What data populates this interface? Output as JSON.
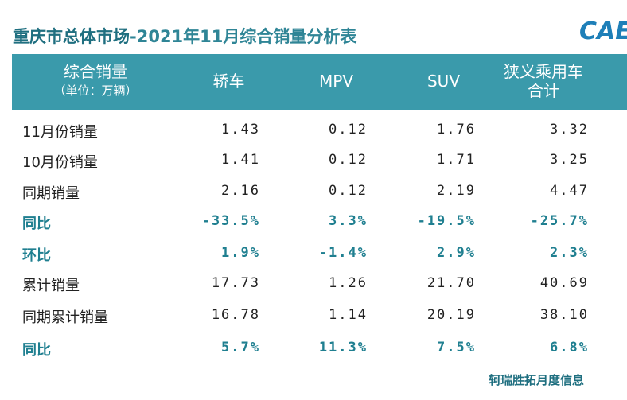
{
  "header": {
    "title_main": "重庆市总体市场",
    "title_sub": "-2021年11月综合销量分析表",
    "logo": "CAE"
  },
  "table": {
    "columns": [
      [
        "综合销量",
        "（单位：万辆）"
      ],
      [
        "轿车"
      ],
      [
        "MPV"
      ],
      [
        "SUV"
      ],
      [
        "狭义乘用车",
        "合计"
      ]
    ],
    "rows": [
      [
        "11月份销量",
        "1.43",
        "0.12",
        "1.76",
        "3.32"
      ],
      [
        "10月份销量",
        "1.41",
        "0.12",
        "1.71",
        "3.25"
      ],
      [
        "同期销量",
        "2.16",
        "0.12",
        "2.19",
        "4.47"
      ],
      [
        "同比",
        "-33.5%",
        "3.3%",
        "-19.5%",
        "-25.7%"
      ],
      [
        "环比",
        "1.9%",
        "-1.4%",
        "2.9%",
        "2.3%"
      ],
      [
        "累计销量",
        "17.73",
        "1.26",
        "21.70",
        "40.69"
      ],
      [
        "同期累计销量",
        "16.78",
        "1.14",
        "20.19",
        "38.10"
      ],
      [
        "同比",
        "5.7%",
        "11.3%",
        "7.5%",
        "6.8%"
      ]
    ],
    "highlight_rows": [
      3,
      4,
      7
    ]
  },
  "footer": {
    "source": "轲瑞胜拓月度信息"
  }
}
